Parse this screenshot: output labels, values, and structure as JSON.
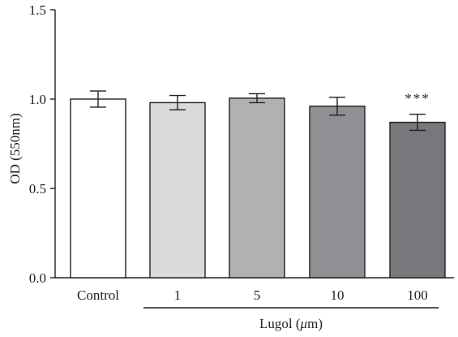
{
  "chart_data": {
    "type": "bar",
    "categories": [
      "Control",
      "1",
      "5",
      "10",
      "100"
    ],
    "values": [
      1.0,
      0.98,
      1.005,
      0.96,
      0.87
    ],
    "errors": [
      0.045,
      0.04,
      0.025,
      0.05,
      0.045
    ],
    "colors": [
      "#ffffff",
      "#d9dadc",
      "#b0b1b3",
      "#8f9093",
      "#77787b"
    ],
    "ylabel": "OD (550nm)",
    "ylim": [
      0,
      1.5
    ],
    "yticks": [
      "0.0",
      "0.5",
      "1.0",
      "1.5"
    ],
    "grid": false,
    "annotations": [
      {
        "category": "100",
        "text": "***"
      }
    ],
    "group_label": {
      "text": "Lugol (",
      "unit_symbol": "μ",
      "unit_rest": "m)",
      "spans": [
        "1",
        "5",
        "10",
        "100"
      ]
    }
  }
}
